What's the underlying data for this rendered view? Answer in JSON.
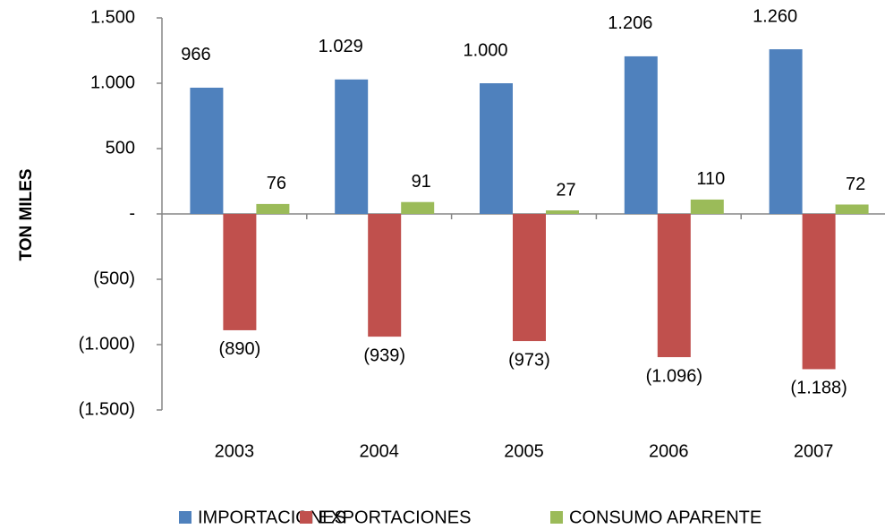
{
  "chart_data": {
    "type": "bar",
    "y_label": "TON MILES",
    "categories": [
      "2003",
      "2004",
      "2005",
      "2006",
      "2007"
    ],
    "series": [
      {
        "name": "IMPORTACIONES",
        "color": "#4f81bd",
        "values": [
          966,
          1029,
          1000,
          1206,
          1260
        ],
        "value_labels": [
          "966",
          "1.029",
          "1.000",
          "1.206",
          "1.260"
        ]
      },
      {
        "name": "EXPORTACIONES",
        "color": "#c0504d",
        "values": [
          -890,
          -939,
          -973,
          -1096,
          -1188
        ],
        "value_labels": [
          "(890)",
          "(939)",
          "(973)",
          "(1.096)",
          "(1.188)"
        ]
      },
      {
        "name": "CONSUMO APARENTE",
        "color": "#9bbb59",
        "values": [
          76,
          91,
          27,
          110,
          72
        ],
        "value_labels": [
          "76",
          "91",
          "27",
          "110",
          "72"
        ]
      }
    ],
    "ylim": [
      -1500,
      1500
    ],
    "yticks": [
      {
        "value": -1500,
        "label": "(1.500)"
      },
      {
        "value": -1000,
        "label": "(1.000)"
      },
      {
        "value": -500,
        "label": "(500)"
      },
      {
        "value": 0,
        "label": "-"
      },
      500,
      {
        "value": 1000,
        "label": "1.000"
      },
      {
        "value": 1500,
        "label": "1.500"
      }
    ],
    "legend": "bottom"
  }
}
